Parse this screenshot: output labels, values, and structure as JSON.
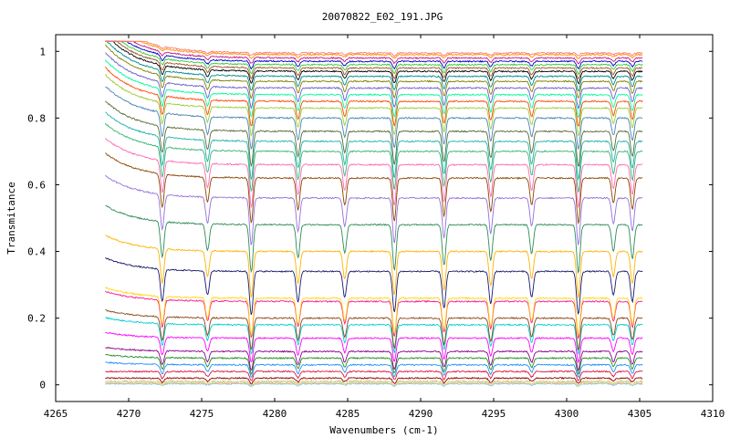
{
  "chart_data": {
    "type": "line",
    "title": "20070822_E02_191.JPG",
    "xlabel": "Wavenumbers (cm-1)",
    "ylabel": "Transmitance",
    "xlim": [
      4265,
      4310
    ],
    "ylim": [
      -0.05,
      1.05
    ],
    "xticks": [
      "4265",
      "4270",
      "4275",
      "4280",
      "4285",
      "4290",
      "4295",
      "4300",
      "4305",
      "4310"
    ],
    "yticks": [
      "0",
      "0.2",
      "0.4",
      "0.6",
      "0.8",
      "1"
    ],
    "grid": false,
    "legend": "none",
    "x_range": [
      4268.4,
      4305.2
    ],
    "absorption_lines_cm1": [
      4272.3,
      4275.4,
      4278.4,
      4281.6,
      4284.8,
      4288.2,
      4291.6,
      4294.8,
      4297.6,
      4300.8,
      4303.2,
      4304.5
    ],
    "line_strengths": [
      0.75,
      0.55,
      1.0,
      0.7,
      0.6,
      0.95,
      0.85,
      0.75,
      0.6,
      1.0,
      0.55,
      0.7
    ],
    "series": [
      {
        "color": "#8B0000",
        "baseline": 0.02
      },
      {
        "color": "#DC143C",
        "baseline": 0.04
      },
      {
        "color": "#1E90FF",
        "baseline": 0.06
      },
      {
        "color": "#228B22",
        "baseline": 0.08
      },
      {
        "color": "#8B008B",
        "baseline": 0.1
      },
      {
        "color": "#FF00FF",
        "baseline": 0.14
      },
      {
        "color": "#00CED1",
        "baseline": 0.18
      },
      {
        "color": "#8B4513",
        "baseline": 0.2
      },
      {
        "color": "#FF1493",
        "baseline": 0.25
      },
      {
        "color": "#FFD700",
        "baseline": 0.26
      },
      {
        "color": "#191970",
        "baseline": 0.34
      },
      {
        "color": "#FFB300",
        "baseline": 0.4
      },
      {
        "color": "#2E8B57",
        "baseline": 0.48
      },
      {
        "color": "#9370DB",
        "baseline": 0.56
      },
      {
        "color": "#8B4500",
        "baseline": 0.62
      },
      {
        "color": "#FF69B4",
        "baseline": 0.66
      },
      {
        "color": "#3CB371",
        "baseline": 0.7
      },
      {
        "color": "#20B2AA",
        "baseline": 0.73
      },
      {
        "color": "#556B2F",
        "baseline": 0.76
      },
      {
        "color": "#4682B4",
        "baseline": 0.8
      },
      {
        "color": "#9ACD32",
        "baseline": 0.83
      },
      {
        "color": "#FF4500",
        "baseline": 0.85
      },
      {
        "color": "#00FA9A",
        "baseline": 0.87
      },
      {
        "color": "#6A5ACD",
        "baseline": 0.89
      },
      {
        "color": "#808000",
        "baseline": 0.91
      },
      {
        "color": "#008B8B",
        "baseline": 0.925
      },
      {
        "color": "#000000",
        "baseline": 0.94
      },
      {
        "color": "#A0522D",
        "baseline": 0.95
      },
      {
        "color": "#32CD32",
        "baseline": 0.96
      },
      {
        "color": "#0000CD",
        "baseline": 0.97
      },
      {
        "color": "#C71585",
        "baseline": 0.98
      },
      {
        "color": "#FF8C00",
        "baseline": 0.99
      },
      {
        "color": "#FA8072",
        "baseline": 0.995
      },
      {
        "color": "#BDB76B",
        "baseline": 0.01
      },
      {
        "color": "#FFA07A",
        "baseline": 0.005
      },
      {
        "color": "#87CEEB",
        "baseline": 0.003
      },
      {
        "color": "#F0E68C",
        "baseline": 0.008
      }
    ]
  }
}
